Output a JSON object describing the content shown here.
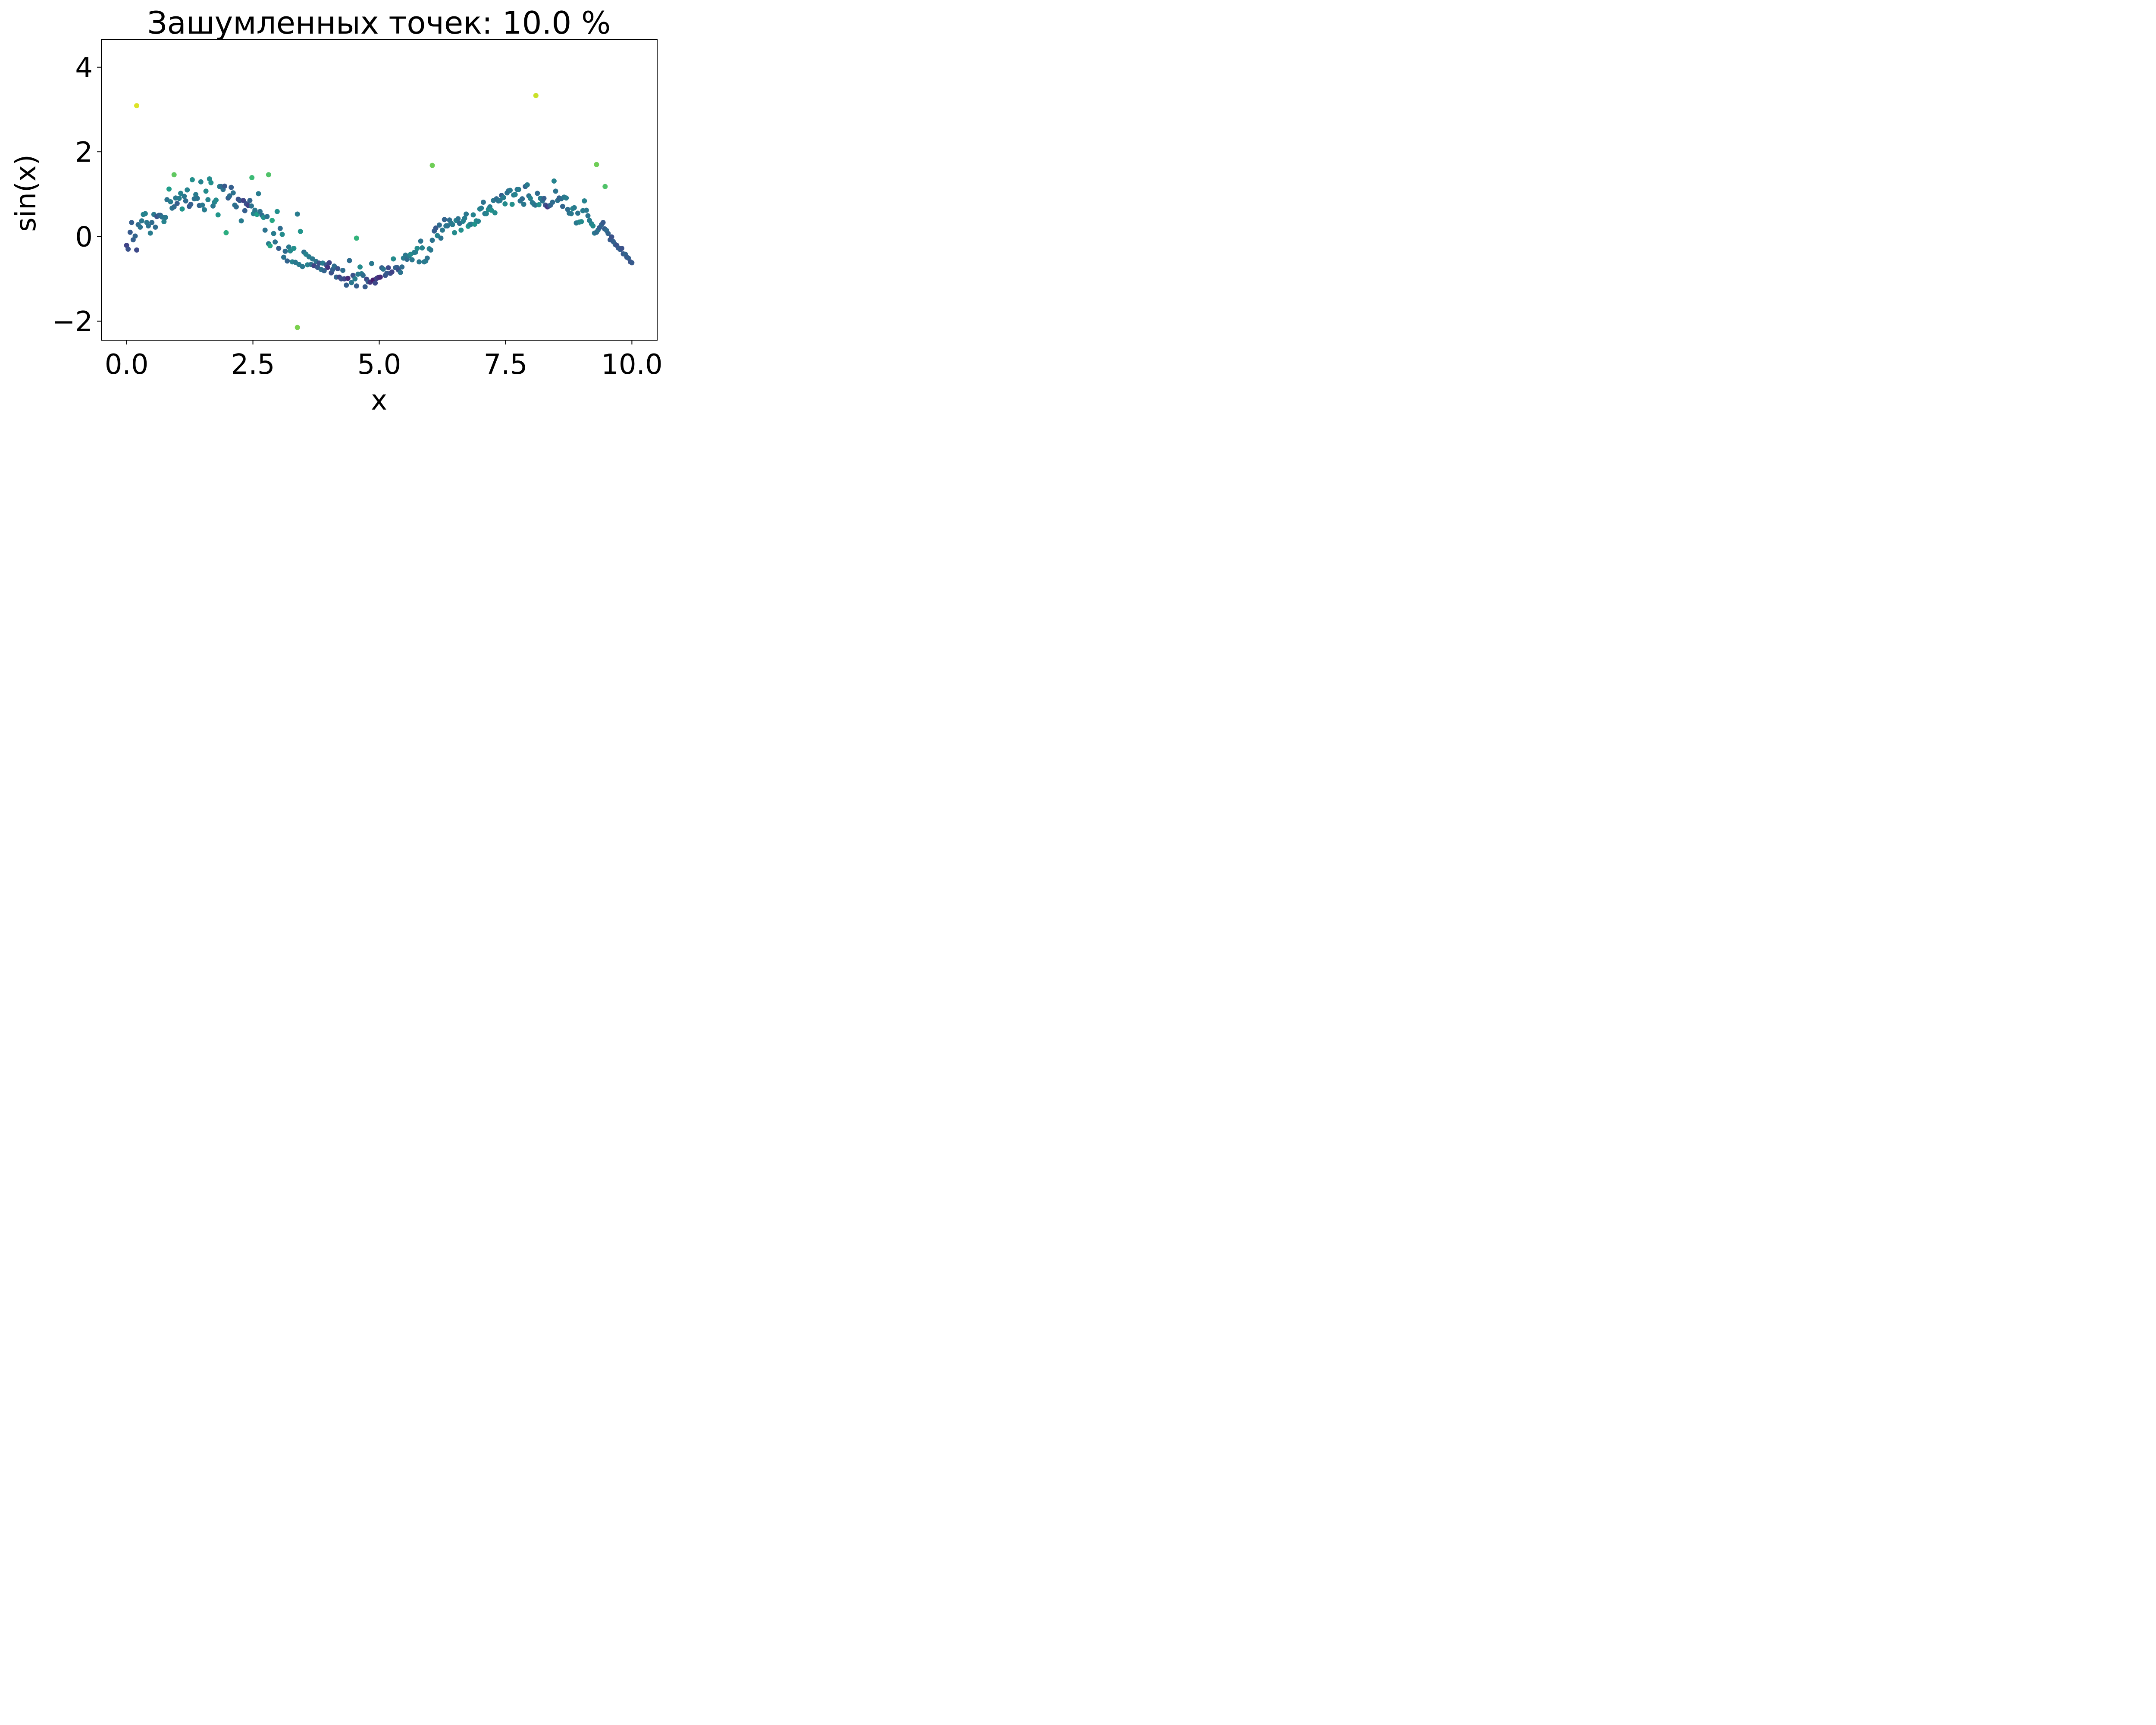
{
  "chart_data": {
    "type": "scatter",
    "title": "Зашумленных точек: 10.0 %",
    "xlabel": "x",
    "ylabel": "sin(x)",
    "xlim": [
      -0.5,
      10.5
    ],
    "ylim": [
      -2.45,
      4.65
    ],
    "x_ticks": [
      {
        "value": 0.0,
        "label": "0.0"
      },
      {
        "value": 2.5,
        "label": "2.5"
      },
      {
        "value": 5.0,
        "label": "5.0"
      },
      {
        "value": 7.5,
        "label": "7.5"
      },
      {
        "value": 10.0,
        "label": "10.0"
      }
    ],
    "y_ticks": [
      {
        "value": -2,
        "label": "−2"
      },
      {
        "value": 0,
        "label": "0"
      },
      {
        "value": 2,
        "label": "2"
      },
      {
        "value": 4,
        "label": "4"
      }
    ],
    "grid": false,
    "legend": "none",
    "colormap": "viridis",
    "x": [
      0.0,
      0.03,
      0.07,
      0.1,
      0.13,
      0.17,
      0.2,
      0.23,
      0.27,
      0.3,
      0.33,
      0.37,
      0.4,
      0.43,
      0.47,
      0.5,
      0.54,
      0.57,
      0.6,
      0.64,
      0.67,
      0.7,
      0.74,
      0.77,
      0.8,
      0.84,
      0.87,
      0.9,
      0.94,
      0.97,
      1.0,
      1.04,
      1.07,
      1.1,
      1.14,
      1.17,
      1.2,
      1.24,
      1.27,
      1.3,
      1.34,
      1.37,
      1.4,
      1.44,
      1.47,
      1.5,
      1.54,
      1.57,
      1.61,
      1.64,
      1.67,
      1.71,
      1.74,
      1.77,
      1.81,
      1.84,
      1.87,
      1.91,
      1.94,
      1.97,
      2.01,
      2.04,
      2.07,
      2.11,
      2.14,
      2.17,
      2.21,
      2.24,
      2.27,
      2.31,
      2.34,
      2.37,
      2.41,
      2.44,
      2.47,
      2.51,
      2.54,
      2.58,
      2.61,
      2.64,
      2.68,
      2.71,
      2.74,
      2.78,
      2.81,
      2.84,
      2.88,
      2.91,
      2.94,
      2.98,
      3.01,
      3.04,
      3.08,
      3.11,
      3.14,
      3.18,
      3.21,
      3.24,
      3.28,
      3.31,
      3.34,
      3.38,
      3.41,
      3.44,
      3.48,
      3.51,
      3.55,
      3.58,
      3.61,
      3.65,
      3.68,
      3.71,
      3.75,
      3.78,
      3.81,
      3.85,
      3.88,
      3.91,
      3.95,
      3.98,
      4.01,
      4.05,
      4.08,
      4.11,
      4.15,
      4.18,
      4.21,
      4.25,
      4.28,
      4.31,
      4.35,
      4.38,
      4.41,
      4.45,
      4.48,
      4.52,
      4.55,
      4.58,
      4.62,
      4.65,
      4.68,
      4.72,
      4.75,
      4.78,
      4.82,
      4.85,
      4.88,
      4.92,
      4.95,
      4.98,
      5.02,
      5.05,
      5.08,
      5.12,
      5.15,
      5.18,
      5.22,
      5.25,
      5.28,
      5.32,
      5.35,
      5.38,
      5.42,
      5.45,
      5.48,
      5.52,
      5.55,
      5.59,
      5.62,
      5.65,
      5.69,
      5.72,
      5.75,
      5.79,
      5.82,
      5.85,
      5.89,
      5.92,
      5.95,
      5.99,
      6.02,
      6.05,
      6.09,
      6.12,
      6.15,
      6.19,
      6.22,
      6.25,
      6.29,
      6.32,
      6.35,
      6.39,
      6.42,
      6.45,
      6.49,
      6.52,
      6.56,
      6.59,
      6.62,
      6.66,
      6.69,
      6.72,
      6.76,
      6.79,
      6.82,
      6.86,
      6.89,
      6.92,
      6.96,
      6.99,
      7.02,
      7.06,
      7.09,
      7.12,
      7.16,
      7.19,
      7.22,
      7.26,
      7.29,
      7.32,
      7.36,
      7.39,
      7.42,
      7.46,
      7.49,
      7.53,
      7.56,
      7.59,
      7.63,
      7.66,
      7.69,
      7.73,
      7.76,
      7.79,
      7.83,
      7.86,
      7.89,
      7.93,
      7.96,
      7.99,
      8.03,
      8.06,
      8.09,
      8.13,
      8.16,
      8.19,
      8.23,
      8.26,
      8.29,
      8.33,
      8.36,
      8.39,
      8.43,
      8.46,
      8.49,
      8.53,
      8.56,
      8.6,
      8.63,
      8.66,
      8.7,
      8.73,
      8.76,
      8.8,
      8.83,
      8.86,
      8.9,
      8.93,
      8.96,
      9.0,
      9.03,
      9.06,
      9.1,
      9.13,
      9.16,
      9.2,
      9.23,
      9.26,
      9.3,
      9.33,
      9.36,
      9.4,
      9.43,
      9.46,
      9.5,
      9.53,
      9.57,
      9.6,
      9.63,
      9.67,
      9.7,
      9.73,
      9.77,
      9.8,
      9.83,
      9.87,
      9.9,
      9.93,
      9.97,
      10.0,
      0.2,
      0.94,
      2.48,
      2.81,
      4.55,
      6.05,
      8.1,
      9.3,
      9.47,
      3.38
    ],
    "y": [
      -0.21,
      -0.3,
      0.1,
      0.33,
      -0.08,
      0.01,
      -0.32,
      0.28,
      0.22,
      0.37,
      0.52,
      0.54,
      0.33,
      0.25,
      0.08,
      0.33,
      0.52,
      0.22,
      0.47,
      0.5,
      0.5,
      0.46,
      0.35,
      0.45,
      0.87,
      1.12,
      0.82,
      0.67,
      0.7,
      0.91,
      0.78,
      0.9,
      1.02,
      0.65,
      0.95,
      0.84,
      1.1,
      0.71,
      0.76,
      1.34,
      0.89,
      0.99,
      0.9,
      0.73,
      1.29,
      0.74,
      0.63,
      1.07,
      0.87,
      1.36,
      1.27,
      0.72,
      0.81,
      0.86,
      0.51,
      1.18,
      1.18,
      1.11,
      1.19,
      0.09,
      0.91,
      0.96,
      1.16,
      1.03,
      0.74,
      0.7,
      0.88,
      0.85,
      0.37,
      0.85,
      0.61,
      0.77,
      0.73,
      0.85,
      0.72,
      0.54,
      0.62,
      0.52,
      1.01,
      0.59,
      0.5,
      0.45,
      0.15,
      0.47,
      -0.17,
      -0.22,
      0.38,
      0.07,
      -0.13,
      0.59,
      -0.28,
      0.19,
      0.05,
      -0.49,
      -0.35,
      -0.58,
      -0.25,
      -0.34,
      -0.6,
      -0.28,
      -0.61,
      0.53,
      -0.66,
      0.12,
      -0.71,
      -0.37,
      -0.42,
      -0.67,
      -0.48,
      -0.66,
      -0.53,
      -0.69,
      -0.59,
      -0.73,
      -0.63,
      -0.78,
      -0.63,
      -0.81,
      -0.67,
      -0.73,
      -0.62,
      -0.86,
      -0.78,
      -0.7,
      -0.96,
      -0.76,
      -0.96,
      -1.0,
      -0.8,
      -1.0,
      -1.15,
      -0.99,
      -0.57,
      -1.09,
      -0.92,
      -1.0,
      -1.17,
      -0.89,
      -0.72,
      -0.88,
      -0.92,
      -1.19,
      -1.01,
      -1.07,
      -1.08,
      -0.64,
      -1.03,
      -1.1,
      -0.99,
      -0.97,
      -0.96,
      -0.74,
      -0.77,
      -0.92,
      -0.87,
      -0.74,
      -0.87,
      -0.84,
      -0.53,
      -0.74,
      -0.73,
      -0.79,
      -0.85,
      -0.72,
      -0.51,
      -0.44,
      -0.54,
      -0.46,
      -0.42,
      -0.55,
      -0.38,
      -0.37,
      -0.28,
      -0.6,
      -0.11,
      -0.27,
      -0.6,
      -0.58,
      -0.51,
      -0.29,
      -0.32,
      -0.09,
      0.13,
      0.2,
      0.02,
      0.27,
      -0.04,
      0.15,
      0.4,
      0.25,
      0.25,
      0.39,
      0.32,
      0.28,
      0.09,
      0.38,
      0.42,
      0.31,
      0.15,
      0.36,
      0.43,
      0.53,
      0.24,
      0.28,
      0.29,
      0.51,
      0.29,
      0.37,
      0.36,
      0.65,
      0.67,
      0.81,
      0.54,
      0.54,
      0.64,
      0.7,
      0.62,
      0.85,
      0.56,
      0.89,
      0.84,
      0.85,
      0.97,
      0.92,
      0.77,
      1.03,
      1.08,
      1.09,
      0.76,
      0.98,
      0.99,
      1.11,
      1.11,
      0.84,
      0.89,
      0.76,
      1.18,
      1.22,
      0.96,
      0.9,
      0.8,
      0.76,
      0.74,
      1.02,
      0.75,
      0.9,
      0.84,
      0.9,
      0.74,
      0.7,
      0.72,
      0.74,
      0.81,
      1.31,
      1.07,
      0.85,
      0.91,
      0.89,
      0.71,
      0.93,
      0.91,
      0.64,
      0.55,
      0.54,
      0.66,
      0.68,
      0.32,
      0.55,
      0.34,
      0.35,
      0.61,
      0.84,
      0.62,
      0.49,
      0.38,
      0.3,
      0.25,
      0.08,
      0.1,
      0.15,
      0.21,
      0.28,
      0.33,
      0.18,
      0.14,
      0.07,
      -0.08,
      -0.01,
      -0.12,
      -0.19,
      -0.21,
      -0.27,
      -0.31,
      -0.28,
      -0.41,
      -0.42,
      -0.49,
      -0.51,
      -0.6,
      -0.62,
      3.09,
      1.46,
      1.39,
      1.46,
      -0.04,
      1.68,
      3.33,
      1.7,
      1.18,
      -2.15
    ],
    "c": [
      0.2,
      0.25,
      0.28,
      0.3,
      0.3,
      0.32,
      0.22,
      0.35,
      0.38,
      0.4,
      0.45,
      0.45,
      0.4,
      0.38,
      0.42,
      0.35,
      0.4,
      0.35,
      0.25,
      0.3,
      0.32,
      0.38,
      0.45,
      0.4,
      0.38,
      0.55,
      0.42,
      0.38,
      0.35,
      0.4,
      0.3,
      0.42,
      0.45,
      0.52,
      0.4,
      0.35,
      0.45,
      0.28,
      0.3,
      0.5,
      0.38,
      0.42,
      0.38,
      0.32,
      0.45,
      0.4,
      0.42,
      0.48,
      0.45,
      0.48,
      0.5,
      0.4,
      0.45,
      0.48,
      0.52,
      0.45,
      0.35,
      0.38,
      0.28,
      0.62,
      0.3,
      0.35,
      0.3,
      0.38,
      0.38,
      0.35,
      0.25,
      0.28,
      0.42,
      0.2,
      0.3,
      0.25,
      0.2,
      0.32,
      0.38,
      0.45,
      0.4,
      0.55,
      0.42,
      0.38,
      0.35,
      0.5,
      0.38,
      0.38,
      0.42,
      0.58,
      0.6,
      0.42,
      0.38,
      0.5,
      0.3,
      0.35,
      0.48,
      0.38,
      0.35,
      0.32,
      0.4,
      0.48,
      0.45,
      0.5,
      0.4,
      0.42,
      0.42,
      0.52,
      0.4,
      0.38,
      0.45,
      0.45,
      0.42,
      0.38,
      0.4,
      0.2,
      0.38,
      0.28,
      0.25,
      0.38,
      0.42,
      0.32,
      0.28,
      0.15,
      0.2,
      0.25,
      0.3,
      0.35,
      0.32,
      0.25,
      0.2,
      0.25,
      0.35,
      0.22,
      0.3,
      0.12,
      0.35,
      0.4,
      0.25,
      0.42,
      0.3,
      0.4,
      0.48,
      0.42,
      0.35,
      0.28,
      0.22,
      0.3,
      0.15,
      0.4,
      0.08,
      0.22,
      0.2,
      0.15,
      0.12,
      0.3,
      0.38,
      0.25,
      0.28,
      0.22,
      0.25,
      0.2,
      0.48,
      0.32,
      0.3,
      0.25,
      0.38,
      0.35,
      0.42,
      0.4,
      0.35,
      0.42,
      0.48,
      0.4,
      0.45,
      0.42,
      0.48,
      0.4,
      0.38,
      0.45,
      0.4,
      0.42,
      0.38,
      0.45,
      0.4,
      0.38,
      0.3,
      0.28,
      0.45,
      0.35,
      0.38,
      0.4,
      0.32,
      0.4,
      0.38,
      0.35,
      0.4,
      0.42,
      0.48,
      0.45,
      0.38,
      0.35,
      0.5,
      0.45,
      0.42,
      0.4,
      0.52,
      0.48,
      0.42,
      0.45,
      0.52,
      0.48,
      0.45,
      0.45,
      0.42,
      0.38,
      0.4,
      0.45,
      0.48,
      0.42,
      0.5,
      0.4,
      0.48,
      0.35,
      0.38,
      0.4,
      0.3,
      0.42,
      0.48,
      0.38,
      0.35,
      0.4,
      0.5,
      0.42,
      0.45,
      0.38,
      0.42,
      0.38,
      0.35,
      0.4,
      0.32,
      0.42,
      0.38,
      0.45,
      0.4,
      0.42,
      0.38,
      0.35,
      0.5,
      0.42,
      0.38,
      0.3,
      0.25,
      0.15,
      0.22,
      0.32,
      0.35,
      0.45,
      0.38,
      0.38,
      0.3,
      0.35,
      0.32,
      0.4,
      0.42,
      0.35,
      0.38,
      0.4,
      0.45,
      0.42,
      0.4,
      0.38,
      0.45,
      0.48,
      0.42,
      0.45,
      0.4,
      0.38,
      0.42,
      0.45,
      0.48,
      0.4,
      0.35,
      0.38,
      0.3,
      0.32,
      0.28,
      0.3,
      0.35,
      0.32,
      0.28,
      0.25,
      0.3,
      0.32,
      0.25,
      0.28,
      0.3,
      0.25,
      0.28,
      0.32,
      0.28,
      0.3,
      0.25,
      0.28,
      0.95,
      0.75,
      0.68,
      0.72,
      0.65,
      0.78,
      0.92,
      0.78,
      0.72,
      0.8
    ],
    "colors": {
      "axis": "#000000",
      "background": "#ffffff",
      "viridis_stops": [
        "#440154",
        "#482878",
        "#3e4a89",
        "#31688e",
        "#26828e",
        "#1f9e89",
        "#35b779",
        "#6ece58",
        "#b5de2b",
        "#fde725"
      ]
    }
  }
}
